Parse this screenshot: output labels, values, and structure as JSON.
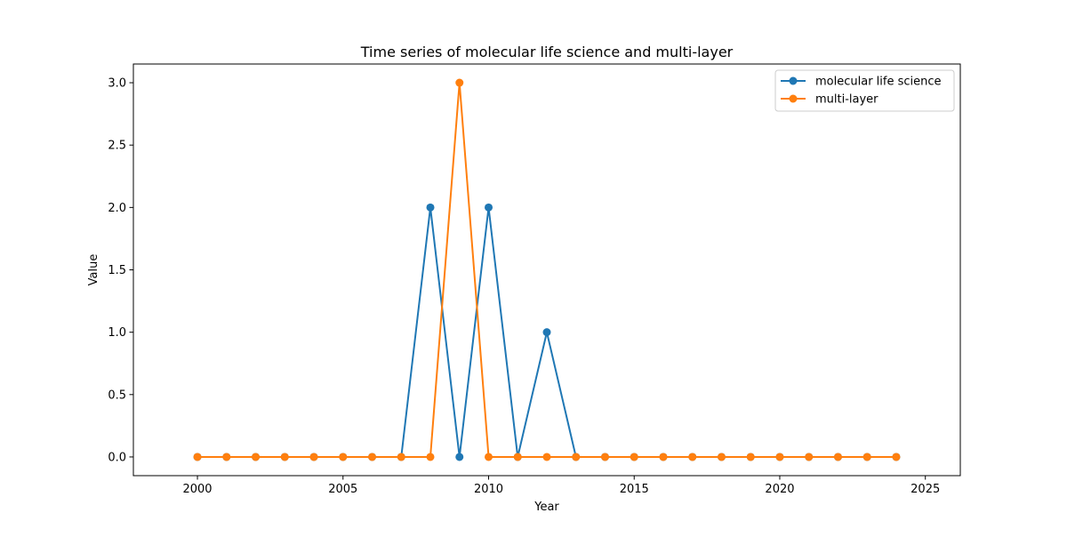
{
  "chart_data": {
    "type": "line",
    "title": "Time series of molecular life science and multi-layer",
    "xlabel": "Year",
    "ylabel": "Value",
    "x": [
      2000,
      2001,
      2002,
      2003,
      2004,
      2005,
      2006,
      2007,
      2008,
      2009,
      2010,
      2011,
      2012,
      2013,
      2014,
      2015,
      2016,
      2017,
      2018,
      2019,
      2020,
      2021,
      2022,
      2023,
      2024
    ],
    "series": [
      {
        "name": "molecular life science",
        "color": "#1f77b4",
        "values": [
          0,
          0,
          0,
          0,
          0,
          0,
          0,
          0,
          2,
          0,
          2,
          0,
          1,
          0,
          0,
          0,
          0,
          0,
          0,
          0,
          0,
          0,
          0,
          0,
          0
        ]
      },
      {
        "name": "multi-layer",
        "color": "#ff7f0e",
        "values": [
          0,
          0,
          0,
          0,
          0,
          0,
          0,
          0,
          0,
          3,
          0,
          0,
          0,
          0,
          0,
          0,
          0,
          0,
          0,
          0,
          0,
          0,
          0,
          0,
          0
        ]
      }
    ],
    "xlim": [
      1997.8,
      2026.2
    ],
    "ylim": [
      -0.15,
      3.15
    ],
    "xticks": [
      2000,
      2005,
      2010,
      2015,
      2020,
      2025
    ],
    "yticks": [
      0.0,
      0.5,
      1.0,
      1.5,
      2.0,
      2.5,
      3.0
    ],
    "xtick_labels": [
      "2000",
      "2005",
      "2010",
      "2015",
      "2020",
      "2025"
    ],
    "ytick_labels": [
      "0.0",
      "0.5",
      "1.0",
      "1.5",
      "2.0",
      "2.5",
      "3.0"
    ],
    "grid": false,
    "legend_position": "top-right",
    "marker": "circle"
  }
}
